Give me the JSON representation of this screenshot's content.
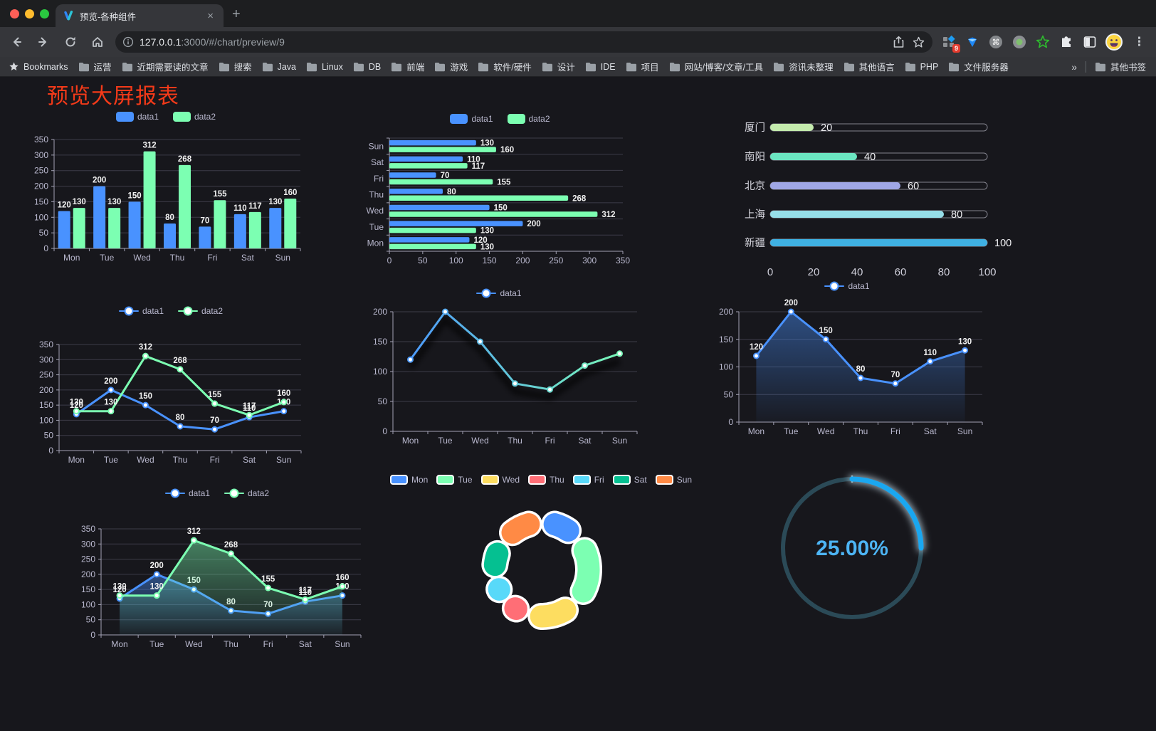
{
  "browser": {
    "tab": {
      "title": "预览-各种组件",
      "close_label": "×"
    },
    "new_tab_label": "+",
    "url": {
      "host": "127.0.0.1",
      "rest": ":3000/#/chart/preview/9"
    },
    "extension_badge": "9",
    "menu_dots": "⋮",
    "bookmarks": {
      "items": [
        "Bookmarks",
        "运营",
        "近期需要读的文章",
        "搜索",
        "Java",
        "Linux",
        "DB",
        "前端",
        "游戏",
        "软件/硬件",
        "设计",
        "IDE",
        "项目",
        "网站/博客/文章/工具",
        "资讯未整理",
        "其他语言",
        "PHP",
        "文件服务器"
      ],
      "overflow": "»",
      "other": "其他书签"
    }
  },
  "page": {
    "title": "预览大屏报表"
  },
  "colors": {
    "blue": "#4992ff",
    "green": "#7cffb2",
    "axis_text": "#b9b8ce",
    "grid": "#3d3c48",
    "axis_line": "#a3a2b4",
    "value_label": "#f2f2f2"
  },
  "chart_data": [
    {
      "id": "bar-grouped",
      "type": "bar",
      "categories": [
        "Mon",
        "Tue",
        "Wed",
        "Thu",
        "Fri",
        "Sat",
        "Sun"
      ],
      "series": [
        {
          "name": "data1",
          "color": "#4992ff",
          "values": [
            120,
            200,
            150,
            80,
            70,
            110,
            130
          ]
        },
        {
          "name": "data2",
          "color": "#7cffb2",
          "values": [
            130,
            130,
            312,
            268,
            155,
            117,
            160
          ]
        }
      ],
      "ylim": [
        0,
        350
      ],
      "ystep": 50,
      "value_labels": true,
      "legend": {
        "type": "rect",
        "items": [
          {
            "label": "data1",
            "color": "#4992ff"
          },
          {
            "label": "data2",
            "color": "#7cffb2"
          }
        ]
      }
    },
    {
      "id": "bar-horizontal",
      "type": "bar-h",
      "categories": [
        "Mon",
        "Tue",
        "Wed",
        "Thu",
        "Fri",
        "Sat",
        "Sun"
      ],
      "series": [
        {
          "name": "data1",
          "color": "#4992ff",
          "values": [
            120,
            200,
            150,
            80,
            70,
            110,
            130
          ]
        },
        {
          "name": "data2",
          "color": "#7cffb2",
          "values": [
            130,
            130,
            312,
            268,
            155,
            117,
            160
          ]
        }
      ],
      "xlim": [
        0,
        350
      ],
      "xstep": 50,
      "value_labels": true,
      "legend": {
        "type": "rect",
        "items": [
          {
            "label": "data1",
            "color": "#4992ff"
          },
          {
            "label": "data2",
            "color": "#7cffb2"
          }
        ]
      }
    },
    {
      "id": "city-progress",
      "type": "progress",
      "items": [
        {
          "label": "厦门",
          "value": 20,
          "color": "#c4ebad"
        },
        {
          "label": "南阳",
          "value": 40,
          "color": "#6be6c1"
        },
        {
          "label": "北京",
          "value": 60,
          "color": "#a0a7e6"
        },
        {
          "label": "上海",
          "value": 80,
          "color": "#96dee8"
        },
        {
          "label": "新疆",
          "value": 100,
          "color": "#3fb1e3"
        }
      ],
      "xlim": [
        0,
        100
      ],
      "xstep": 20
    },
    {
      "id": "line-basic",
      "type": "line",
      "categories": [
        "Mon",
        "Tue",
        "Wed",
        "Thu",
        "Fri",
        "Sat",
        "Sun"
      ],
      "series": [
        {
          "name": "data1",
          "color": "#4992ff",
          "values": [
            120,
            200,
            150,
            80,
            70,
            110,
            130
          ]
        },
        {
          "name": "data2",
          "color": "#7cffb2",
          "values": [
            130,
            130,
            312,
            268,
            155,
            117,
            160
          ]
        }
      ],
      "ylim": [
        0,
        350
      ],
      "ystep": 50,
      "value_labels": true,
      "legend": {
        "type": "line",
        "items": [
          {
            "label": "data1",
            "color": "#4992ff"
          },
          {
            "label": "data2",
            "color": "#7cffb2"
          }
        ]
      }
    },
    {
      "id": "line-gradient",
      "type": "line",
      "categories": [
        "Mon",
        "Tue",
        "Wed",
        "Thu",
        "Fri",
        "Sat",
        "Sun"
      ],
      "series": [
        {
          "name": "data1",
          "color": "#4992ff",
          "gradient": [
            "#4992ff",
            "#7cffb2"
          ],
          "values": [
            120,
            200,
            150,
            80,
            70,
            110,
            130
          ]
        }
      ],
      "ylim": [
        0,
        200
      ],
      "ystep": 50,
      "value_labels": false,
      "shadow": true,
      "legend": {
        "type": "line",
        "items": [
          {
            "label": "data1",
            "color": "#4992ff"
          }
        ]
      }
    },
    {
      "id": "area-single",
      "type": "line",
      "area": true,
      "categories": [
        "Mon",
        "Tue",
        "Wed",
        "Thu",
        "Fri",
        "Sat",
        "Sun"
      ],
      "series": [
        {
          "name": "data1",
          "color": "#4992ff",
          "values": [
            120,
            200,
            150,
            80,
            70,
            110,
            130
          ]
        }
      ],
      "ylim": [
        0,
        200
      ],
      "ystep": 50,
      "value_labels": true,
      "legend": {
        "type": "line",
        "items": [
          {
            "label": "data1",
            "color": "#4992ff"
          }
        ]
      }
    },
    {
      "id": "area-double",
      "type": "line",
      "area": true,
      "categories": [
        "Mon",
        "Tue",
        "Wed",
        "Thu",
        "Fri",
        "Sat",
        "Sun"
      ],
      "series": [
        {
          "name": "data1",
          "color": "#4992ff",
          "values": [
            120,
            200,
            150,
            80,
            70,
            110,
            130
          ]
        },
        {
          "name": "data2",
          "color": "#7cffb2",
          "values": [
            130,
            130,
            312,
            268,
            155,
            117,
            160
          ]
        }
      ],
      "ylim": [
        0,
        350
      ],
      "ystep": 50,
      "value_labels": true,
      "legend": {
        "type": "line",
        "items": [
          {
            "label": "data1",
            "color": "#4992ff"
          },
          {
            "label": "data2",
            "color": "#7cffb2"
          }
        ]
      }
    },
    {
      "id": "donut",
      "type": "donut",
      "items": [
        {
          "label": "Mon",
          "value": 120,
          "color": "#4992ff"
        },
        {
          "label": "Tue",
          "value": 200,
          "color": "#7cffb2"
        },
        {
          "label": "Wed",
          "value": 150,
          "color": "#fddd60"
        },
        {
          "label": "Thu",
          "value": 80,
          "color": "#ff6e76"
        },
        {
          "label": "Fri",
          "value": 70,
          "color": "#58d9f9"
        },
        {
          "label": "Sat",
          "value": 110,
          "color": "#05c091"
        },
        {
          "label": "Sun",
          "value": 130,
          "color": "#ff8a45"
        }
      ],
      "legend": {
        "type": "rect-border"
      }
    },
    {
      "id": "gauge",
      "type": "gauge",
      "value_text": "25.00%",
      "percent": 25,
      "color": "#1aa7f0",
      "track_color": "#2b4a57",
      "text_color": "#4db5f5"
    }
  ]
}
